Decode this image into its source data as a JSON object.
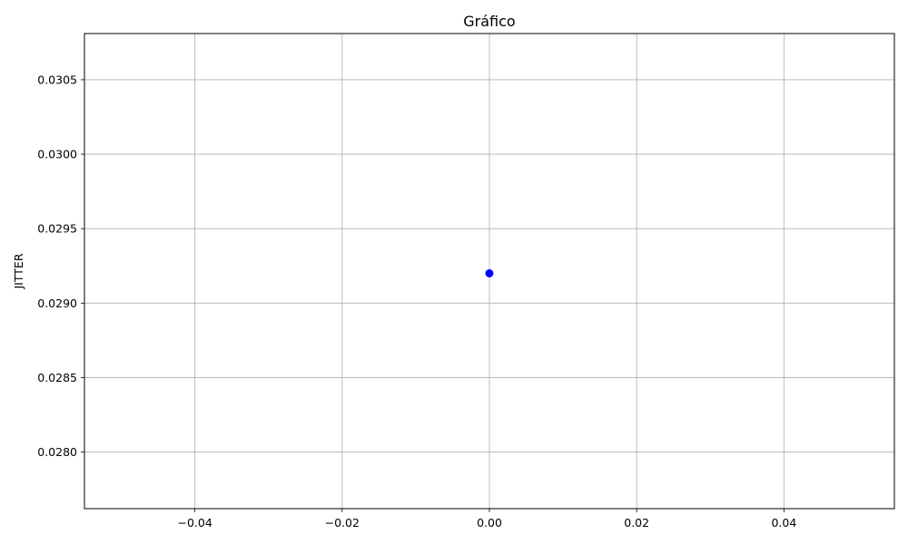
{
  "chart_data": {
    "type": "scatter",
    "title": "Gráfico",
    "xlabel": "",
    "ylabel": "JITTER",
    "xlim": [
      -0.055,
      0.055
    ],
    "ylim": [
      0.02762,
      0.03081
    ],
    "x_ticks": [
      -0.04,
      -0.02,
      0.0,
      0.02,
      0.04
    ],
    "x_tick_labels": [
      "−0.04",
      "−0.02",
      "0.00",
      "0.02",
      "0.04"
    ],
    "y_ticks": [
      0.028,
      0.0285,
      0.029,
      0.0295,
      0.03,
      0.0305
    ],
    "y_tick_labels": [
      "0.0280",
      "0.0285",
      "0.0290",
      "0.0295",
      "0.0300",
      "0.0305"
    ],
    "grid": true,
    "series": [
      {
        "x": [
          0.0
        ],
        "y": [
          0.0292
        ],
        "color": "#0000ff",
        "marker": "circle"
      }
    ],
    "colors": {
      "grid": "#b0b0b0",
      "axes": "#000000",
      "point": "#0000ff"
    }
  }
}
